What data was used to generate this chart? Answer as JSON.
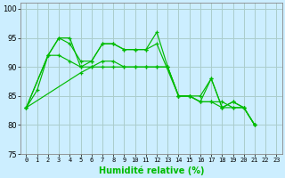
{
  "xlabel": "Humidité relative (%)",
  "background_color": "#cceeff",
  "grid_color": "#aacccc",
  "line_color": "#00bb00",
  "xlim": [
    -0.5,
    23.5
  ],
  "ylim": [
    75,
    101
  ],
  "yticks": [
    75,
    80,
    85,
    90,
    95,
    100
  ],
  "xtick_labels": [
    "0",
    "1",
    "2",
    "3",
    "4",
    "5",
    "6",
    "7",
    "8",
    "9",
    "10",
    "11",
    "12",
    "13",
    "14",
    "15",
    "16",
    "17",
    "18",
    "19",
    "20",
    "21",
    "22",
    "23"
  ],
  "line1_x": [
    0,
    1,
    2,
    3,
    4,
    5,
    6,
    7,
    8,
    9,
    10,
    11,
    12,
    13,
    14,
    15,
    16,
    17,
    18,
    19,
    20,
    21
  ],
  "line1_y": [
    83,
    86,
    92,
    95,
    95,
    90,
    91,
    94,
    94,
    93,
    93,
    93,
    96,
    90,
    85,
    85,
    84,
    88,
    83,
    84,
    83,
    80
  ],
  "line2_x": [
    0,
    2,
    3,
    4,
    5,
    6,
    7,
    8,
    9,
    10,
    11,
    12,
    14,
    15,
    16,
    17,
    18,
    19,
    20,
    21
  ],
  "line2_y": [
    83,
    92,
    95,
    94,
    91,
    91,
    94,
    94,
    93,
    93,
    93,
    94,
    85,
    85,
    85,
    88,
    83,
    84,
    83,
    80
  ],
  "line3_x": [
    0,
    5,
    6,
    7,
    8,
    9,
    10,
    11,
    12,
    13,
    14,
    15,
    16,
    17,
    18,
    19,
    20,
    21
  ],
  "line3_y": [
    83,
    89,
    90,
    90,
    90,
    90,
    90,
    90,
    90,
    90,
    85,
    85,
    84,
    84,
    84,
    83,
    83,
    80
  ],
  "line4_x": [
    0,
    2,
    3,
    4,
    5,
    6,
    7,
    8,
    9,
    10,
    11,
    12,
    13,
    14,
    15,
    16,
    17,
    18,
    19,
    20,
    21
  ],
  "line4_y": [
    83,
    92,
    92,
    91,
    90,
    90,
    91,
    91,
    90,
    90,
    90,
    90,
    90,
    85,
    85,
    84,
    84,
    83,
    83,
    83,
    80
  ]
}
